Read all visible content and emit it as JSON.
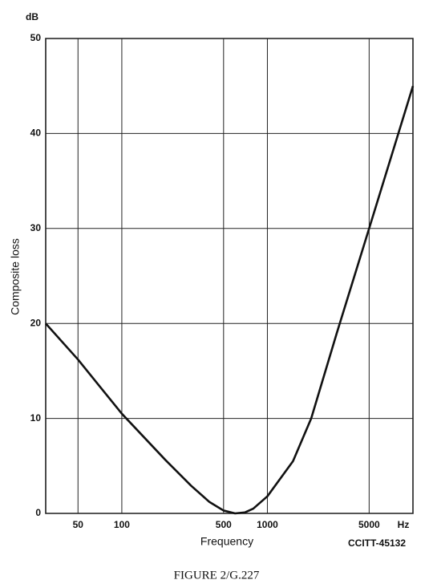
{
  "chart_data": {
    "type": "line",
    "y_unit": "dB",
    "x_unit": "Hz",
    "xlabel": "Frequency",
    "ylabel": "Composite loss",
    "reference": "CCITT-45132",
    "caption": "FIGURE 2/G.227",
    "x_log": true,
    "grid": true,
    "xlim": [
      30,
      10000
    ],
    "ylim": [
      0,
      50
    ],
    "xticks": [
      50,
      100,
      500,
      1000,
      5000
    ],
    "yticks": [
      0,
      10,
      20,
      30,
      40,
      50
    ],
    "x": [
      30,
      50,
      100,
      200,
      300,
      400,
      500,
      600,
      700,
      800,
      1000,
      1500,
      2000,
      3000,
      5000,
      10000
    ],
    "series": [
      {
        "color": "#111111",
        "values": [
          20,
          16.2,
          10.5,
          5.6,
          2.9,
          1.2,
          0.3,
          0,
          0.1,
          0.5,
          1.8,
          5.5,
          10,
          19,
          30,
          45
        ]
      }
    ]
  }
}
